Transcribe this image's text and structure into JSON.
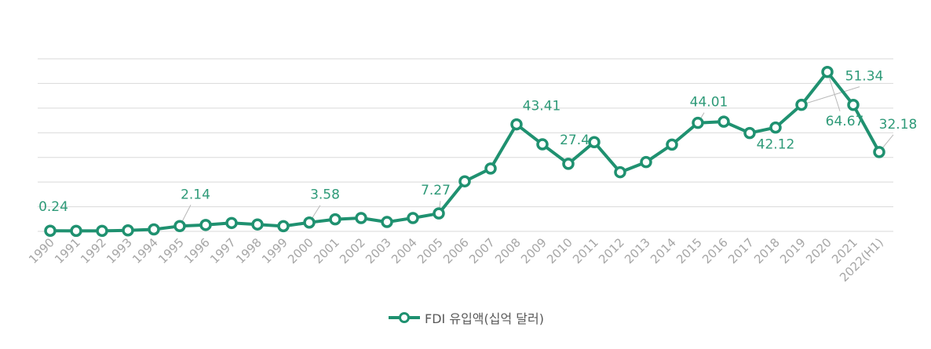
{
  "chart_data": {
    "type": "line",
    "title": "",
    "xlabel": "",
    "ylabel": "",
    "ylim": [
      0,
      70
    ],
    "grid": true,
    "legend_position": "bottom",
    "categories": [
      "1990",
      "1991",
      "1992",
      "1993",
      "1994",
      "1995",
      "1996",
      "1997",
      "1998",
      "1999",
      "2000",
      "2001",
      "2002",
      "2003",
      "2004",
      "2005",
      "2006",
      "2007",
      "2008",
      "2009",
      "2010",
      "2011",
      "2012",
      "2013",
      "2014",
      "2015",
      "2016",
      "2017",
      "2018",
      "2019",
      "2020",
      "2021",
      "2022(H1)"
    ],
    "series": [
      {
        "name": "FDI 유입액(십억 달러)",
        "color": "#1f9170",
        "values": [
          0.24,
          0.2,
          0.2,
          0.4,
          0.8,
          2.14,
          2.6,
          3.4,
          2.8,
          2.1,
          3.58,
          4.9,
          5.4,
          3.8,
          5.4,
          7.27,
          20.3,
          25.5,
          43.41,
          35.3,
          27.4,
          36.2,
          24.0,
          28.1,
          35.2,
          44.01,
          44.5,
          39.9,
          42.12,
          51.34,
          64.67,
          51.3,
          32.18
        ]
      }
    ],
    "data_labels": [
      {
        "index": 0,
        "text": "0.24"
      },
      {
        "index": 5,
        "text": "2.14"
      },
      {
        "index": 10,
        "text": "3.58"
      },
      {
        "index": 15,
        "text": "7.27"
      },
      {
        "index": 18,
        "text": "43.41"
      },
      {
        "index": 20,
        "text": "27.4"
      },
      {
        "index": 25,
        "text": "44.01"
      },
      {
        "index": 28,
        "text": "42.12"
      },
      {
        "index": 29,
        "text": "51.34"
      },
      {
        "index": 30,
        "text": "64.67"
      },
      {
        "index": 32,
        "text": "32.18"
      }
    ]
  }
}
